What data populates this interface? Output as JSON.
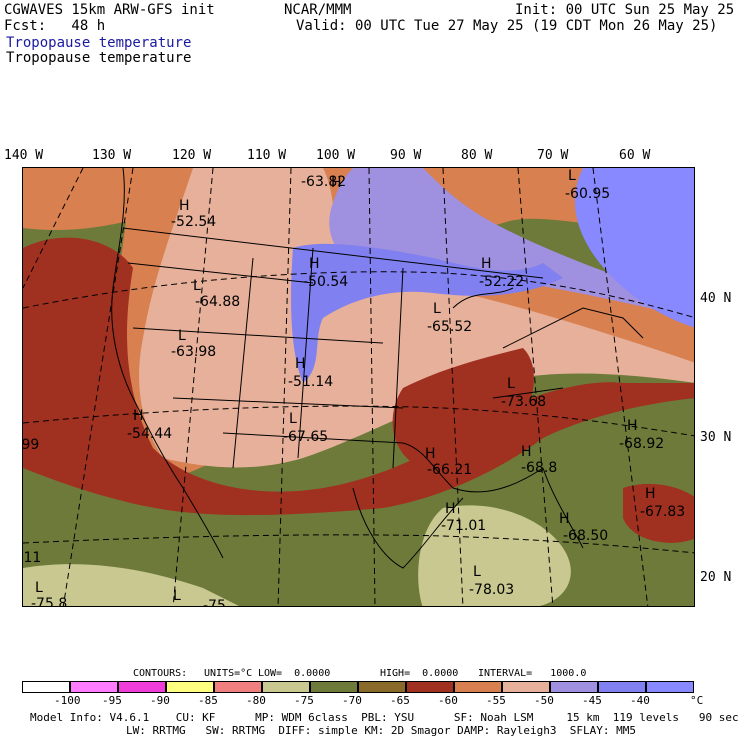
{
  "header": {
    "model": "CGWAVES 15km ARW-GFS init",
    "forecast": "Fcst:   48 h",
    "field_blue": "Tropopause temperature",
    "field_black": "Tropopause temperature",
    "org": "NCAR/MMM",
    "init": "Init: 00 UTC Sun 25 May 25",
    "valid": "Valid: 00 UTC Tue 27 May 25 (19 CDT Mon 26 May 25)"
  },
  "lon_labels": [
    "140 W",
    "130 W",
    "120 W",
    "110 W",
    "100 W",
    "90 W",
    "80 W",
    "70 W",
    "60 W"
  ],
  "lat_labels": [
    "40 N",
    "30 N",
    "20 N"
  ],
  "map_labels": [
    {
      "type": "H",
      "value": "-63.82"
    },
    {
      "type": "L",
      "value": "-60.95"
    },
    {
      "type": "H",
      "value": "-52.54"
    },
    {
      "type": "H",
      "value": "-50.54"
    },
    {
      "type": "H",
      "value": "-52.22"
    },
    {
      "type": "L",
      "value": "-64.88"
    },
    {
      "type": "L",
      "value": "-65.52"
    },
    {
      "type": "L",
      "value": "-63.98"
    },
    {
      "type": "H",
      "value": "-51.14"
    },
    {
      "type": "L",
      "value": "-73.68"
    },
    {
      "type": "H",
      "value": "-54.44"
    },
    {
      "type": "L",
      "value": "-67.65"
    },
    {
      "type": "H",
      "value": "-68.92"
    },
    {
      "type": "H",
      "value": "-66.21"
    },
    {
      "type": "H",
      "value": "-68.8"
    },
    {
      "type": "H",
      "value": "-67.83"
    },
    {
      "type": "H",
      "value": "-71.01"
    },
    {
      "type": "H",
      "value": "-68.50"
    },
    {
      "type": "L",
      "value": "-78.03"
    }
  ],
  "edge_labels": [
    ".99",
    ".11",
    "-75.8",
    "L",
    "L",
    "-75"
  ],
  "contours": {
    "label": "CONTOURS:",
    "units": "UNITS=°C",
    "low": "LOW=  0.0000",
    "high": "HIGH=  0.0000",
    "interval": "INTERVAL=   1000.0"
  },
  "colorbar": {
    "colors": [
      "#ffffff",
      "#ff7bff",
      "#f03cd8",
      "#ffff80",
      "#f08080",
      "#c8c890",
      "#6e7a3a",
      "#8a6a2a",
      "#a03020",
      "#d88050",
      "#e6b09a",
      "#a090e0",
      "#8080f0",
      "#8888ff"
    ],
    "ticks": [
      "-100",
      "-95",
      "-90",
      "-85",
      "-80",
      "-75",
      "-70",
      "-65",
      "-60",
      "-55",
      "-50",
      "-45",
      "-40"
    ],
    "unit": "°C"
  },
  "footer": {
    "line1": "Model Info: V4.6.1    CU: KF      MP: WDM 6class  PBL: YSU      SF: Noah LSM     15 km  119 levels   90 sec",
    "line2": "LW: RRTMG   SW: RRTMG  DIFF: simple KM: 2D Smagor DAMP: Rayleigh3  SFLAY: MM5"
  }
}
